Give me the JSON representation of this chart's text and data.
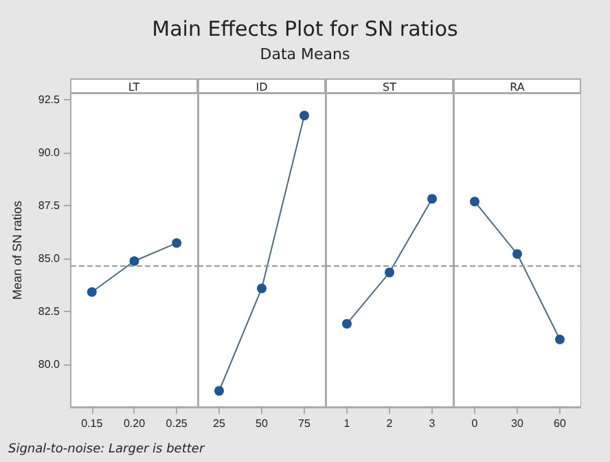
{
  "chart_data": [
    {
      "type": "other",
      "title": "Main Effects Plot for SN ratios",
      "subtitle": "Data Means",
      "annotations": [
        "Signal-to-noise: Larger is better"
      ]
    },
    {
      "type": "line",
      "title": "LT",
      "ylabel": "Mean of SN ratios",
      "categories": [
        "0.15",
        "0.20",
        "0.25"
      ],
      "series": [
        {
          "color": "#1f5696",
          "values": [
            83.43,
            84.89,
            85.74
          ]
        }
      ],
      "ylim": [
        78.0,
        92.8
      ],
      "yticks": [
        {
          "value": 80,
          "label": "80.0"
        },
        {
          "value": 82.5,
          "label": "82.5"
        },
        {
          "value": 85,
          "label": "85.0"
        },
        {
          "value": 87.5,
          "label": "87.5"
        },
        {
          "value": 90,
          "label": "90.0"
        },
        {
          "value": 92.5,
          "label": "92.5"
        }
      ],
      "ref_lines": [
        {
          "axis": "y",
          "value": 84.7,
          "line_style": "dashed",
          "color": "#999999"
        }
      ],
      "marker": "circle",
      "grid": false
    },
    {
      "type": "line",
      "title": "ID",
      "categories": [
        "25",
        "50",
        "75"
      ],
      "series": [
        {
          "color": "#1f5696",
          "values": [
            78.76,
            83.6,
            91.76
          ]
        }
      ],
      "ylim": [
        78.0,
        92.8
      ],
      "tick_labels": "x",
      "ref_lines": [
        {
          "axis": "y",
          "value": 84.7,
          "line_style": "dashed",
          "color": "#999999"
        }
      ],
      "marker": "circle",
      "grid": false
    },
    {
      "type": "line",
      "title": "ST",
      "categories": [
        "1",
        "2",
        "3"
      ],
      "series": [
        {
          "color": "#1f5696",
          "values": [
            81.93,
            84.35,
            87.83
          ]
        }
      ],
      "ylim": [
        78.0,
        92.8
      ],
      "tick_labels": "x",
      "ref_lines": [
        {
          "axis": "y",
          "value": 84.7,
          "line_style": "dashed",
          "color": "#999999"
        }
      ],
      "marker": "circle",
      "grid": false
    },
    {
      "type": "line",
      "title": "RA",
      "categories": [
        "0",
        "30",
        "60"
      ],
      "series": [
        {
          "color": "#1f5696",
          "values": [
            87.7,
            85.22,
            81.19
          ]
        }
      ],
      "ylim": [
        78.0,
        92.8
      ],
      "tick_labels": "x",
      "ref_lines": [
        {
          "axis": "y",
          "value": 84.7,
          "line_style": "dashed",
          "color": "#999999"
        }
      ],
      "marker": "circle",
      "grid": false
    }
  ]
}
